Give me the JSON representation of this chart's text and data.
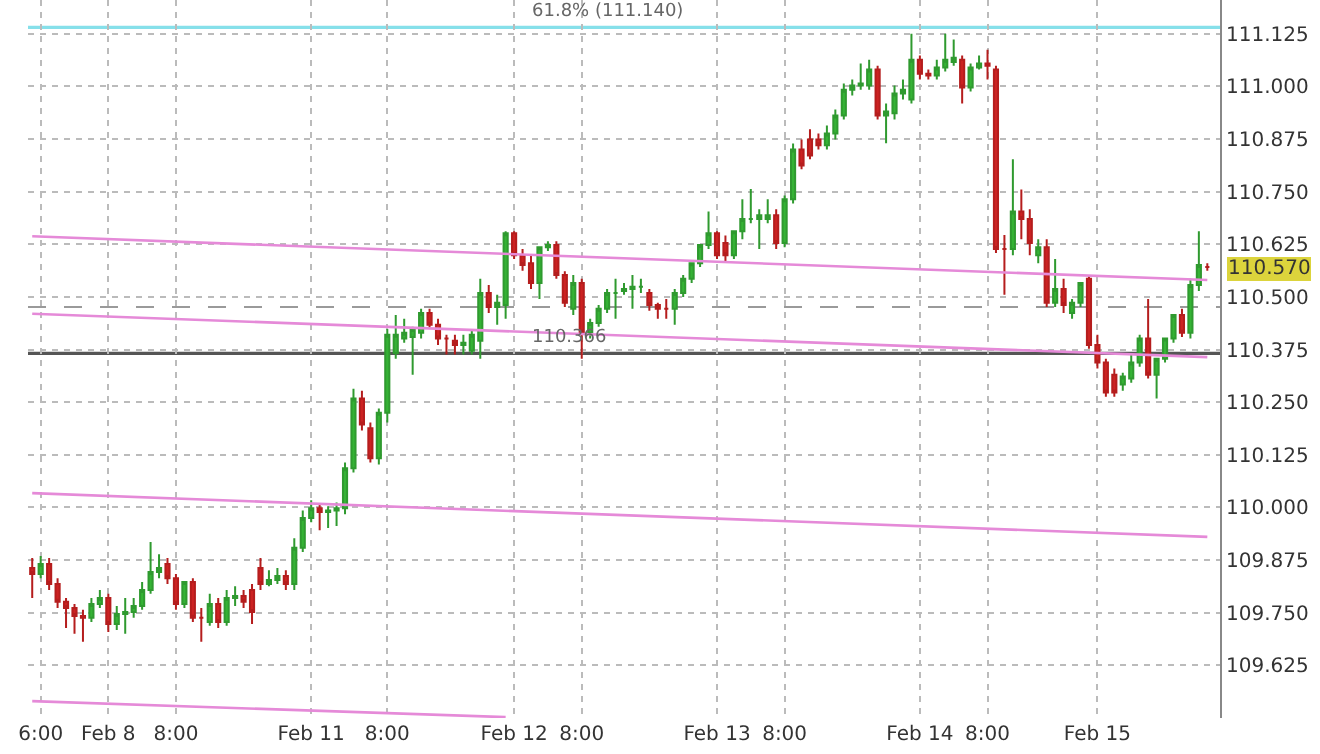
{
  "chart_data": {
    "type": "candlestick",
    "categories": [
      null,
      "6:00",
      null,
      null,
      null,
      null,
      null,
      null,
      null,
      "Feb 8",
      null,
      null,
      null,
      null,
      null,
      null,
      null,
      "8:00",
      null,
      null,
      null,
      null,
      null,
      null,
      null,
      null,
      null,
      null,
      null,
      null,
      null,
      null,
      null,
      "Feb 11",
      null,
      null,
      null,
      null,
      null,
      null,
      null,
      null,
      "8:00",
      null,
      null,
      null,
      null,
      null,
      null,
      null,
      null,
      null,
      null,
      null,
      null,
      null,
      null,
      "Feb 12",
      null,
      null,
      null,
      null,
      null,
      null,
      null,
      "8:00",
      null,
      null,
      null,
      null,
      null,
      null,
      null,
      null,
      null,
      null,
      null,
      null,
      null,
      null,
      null,
      "Feb 13",
      null,
      null,
      null,
      null,
      null,
      null,
      null,
      "8:00",
      null,
      null,
      null,
      null,
      null,
      null,
      null,
      null,
      null,
      null,
      null,
      null,
      null,
      null,
      null,
      "Feb 14",
      null,
      null,
      null,
      null,
      null,
      null,
      null,
      "8:00",
      null,
      null,
      null,
      null,
      null,
      null,
      null,
      null,
      null,
      null,
      null,
      null,
      "Feb 15",
      null,
      null,
      null,
      null,
      null,
      null,
      null,
      null,
      null,
      null,
      null,
      null,
      null
    ],
    "ohlc": [
      [
        109.856,
        109.88,
        109.785,
        109.842
      ],
      [
        109.842,
        109.885,
        109.832,
        109.866
      ],
      [
        109.866,
        109.88,
        109.804,
        109.818
      ],
      [
        109.818,
        109.832,
        109.761,
        109.776
      ],
      [
        109.776,
        109.785,
        109.714,
        109.761
      ],
      [
        109.761,
        109.771,
        109.7,
        109.742
      ],
      [
        109.742,
        109.757,
        109.681,
        109.738
      ],
      [
        109.738,
        109.785,
        109.728,
        109.771
      ],
      [
        109.771,
        109.804,
        109.761,
        109.785
      ],
      [
        109.785,
        109.795,
        109.704,
        109.723
      ],
      [
        109.723,
        109.766,
        109.709,
        109.747
      ],
      [
        109.747,
        109.785,
        109.7,
        109.752
      ],
      [
        109.752,
        109.785,
        109.738,
        109.766
      ],
      [
        109.766,
        109.823,
        109.757,
        109.804
      ],
      [
        109.804,
        109.918,
        109.795,
        109.847
      ],
      [
        109.847,
        109.889,
        109.832,
        109.856
      ],
      [
        109.866,
        109.88,
        109.818,
        109.832
      ],
      [
        109.832,
        109.842,
        109.757,
        109.771
      ],
      [
        109.771,
        109.823,
        109.761,
        109.823
      ],
      [
        109.823,
        109.832,
        109.728,
        109.738
      ],
      [
        109.738,
        109.761,
        109.681,
        109.738
      ],
      [
        109.728,
        109.795,
        109.719,
        109.771
      ],
      [
        109.771,
        109.785,
        109.714,
        109.728
      ],
      [
        109.728,
        109.804,
        109.719,
        109.785
      ],
      [
        109.785,
        109.813,
        109.766,
        109.79
      ],
      [
        109.79,
        109.804,
        109.761,
        109.776
      ],
      [
        109.804,
        109.818,
        109.723,
        109.752
      ],
      [
        109.856,
        109.88,
        109.804,
        109.818
      ],
      [
        109.818,
        109.851,
        109.813,
        109.828
      ],
      [
        109.828,
        109.856,
        109.818,
        109.837
      ],
      [
        109.837,
        109.851,
        109.804,
        109.818
      ],
      [
        109.818,
        109.927,
        109.804,
        109.904
      ],
      [
        109.904,
        109.993,
        109.894,
        109.975
      ],
      [
        109.975,
        110.017,
        109.965,
        109.998
      ],
      [
        109.998,
        110.007,
        109.946,
        109.989
      ],
      [
        109.989,
        110.003,
        109.951,
        109.993
      ],
      [
        109.993,
        110.012,
        109.956,
        109.998
      ],
      [
        109.998,
        110.107,
        109.984,
        110.093
      ],
      [
        110.093,
        110.282,
        110.083,
        110.259
      ],
      [
        110.259,
        110.277,
        110.183,
        110.197
      ],
      [
        110.188,
        110.202,
        110.107,
        110.117
      ],
      [
        110.117,
        110.235,
        110.102,
        110.225
      ],
      [
        110.225,
        110.424,
        110.202,
        110.41
      ],
      [
        110.367,
        110.457,
        110.353,
        110.41
      ],
      [
        110.401,
        110.448,
        110.391,
        110.415
      ],
      [
        110.405,
        110.429,
        110.315,
        110.424
      ],
      [
        110.415,
        110.472,
        110.401,
        110.462
      ],
      [
        110.462,
        110.472,
        110.424,
        110.434
      ],
      [
        110.434,
        110.448,
        110.386,
        110.401
      ],
      [
        110.401,
        110.41,
        110.363,
        110.401
      ],
      [
        110.396,
        110.41,
        110.363,
        110.386
      ],
      [
        110.386,
        110.41,
        110.363,
        110.391
      ],
      [
        110.372,
        110.424,
        110.363,
        110.41
      ],
      [
        110.396,
        110.543,
        110.353,
        110.509
      ],
      [
        110.509,
        110.528,
        110.462,
        110.476
      ],
      [
        110.476,
        110.505,
        110.434,
        110.486
      ],
      [
        110.481,
        110.656,
        110.448,
        110.651
      ],
      [
        110.651,
        110.656,
        110.59,
        110.599
      ],
      [
        110.599,
        110.614,
        110.562,
        110.576
      ],
      [
        110.58,
        110.599,
        110.519,
        110.533
      ],
      [
        110.533,
        110.618,
        110.495,
        110.618
      ],
      [
        110.618,
        110.632,
        110.609,
        110.623
      ],
      [
        110.623,
        110.632,
        110.543,
        110.552
      ],
      [
        110.552,
        110.561,
        110.476,
        110.486
      ],
      [
        110.472,
        110.552,
        110.457,
        110.533
      ],
      [
        110.533,
        110.543,
        110.353,
        110.415
      ],
      [
        110.415,
        110.448,
        110.401,
        110.438
      ],
      [
        110.438,
        110.481,
        110.429,
        110.472
      ],
      [
        110.472,
        110.519,
        110.462,
        110.509
      ],
      [
        110.509,
        110.543,
        110.448,
        110.509
      ],
      [
        110.514,
        110.533,
        110.505,
        110.519
      ],
      [
        110.519,
        110.552,
        110.472,
        110.524
      ],
      [
        110.524,
        110.543,
        110.509,
        110.524
      ],
      [
        110.509,
        110.519,
        110.467,
        110.481
      ],
      [
        110.481,
        110.486,
        110.448,
        110.472
      ],
      [
        110.472,
        110.495,
        110.448,
        110.472
      ],
      [
        110.472,
        110.519,
        110.434,
        110.509
      ],
      [
        110.509,
        110.552,
        110.5,
        110.543
      ],
      [
        110.543,
        110.58,
        110.533,
        110.58
      ],
      [
        110.58,
        110.623,
        110.571,
        110.623
      ],
      [
        110.623,
        110.703,
        110.614,
        110.651
      ],
      [
        110.651,
        110.656,
        110.59,
        110.599
      ],
      [
        110.628,
        110.646,
        110.585,
        110.599
      ],
      [
        110.599,
        110.656,
        110.59,
        110.656
      ],
      [
        110.656,
        110.732,
        110.637,
        110.685
      ],
      [
        110.685,
        110.756,
        110.675,
        110.685
      ],
      [
        110.685,
        110.708,
        110.614,
        110.694
      ],
      [
        110.685,
        110.732,
        110.675,
        110.694
      ],
      [
        110.694,
        110.708,
        110.614,
        110.628
      ],
      [
        110.628,
        110.741,
        110.618,
        110.732
      ],
      [
        110.732,
        110.864,
        110.722,
        110.85
      ],
      [
        110.85,
        110.874,
        110.803,
        110.812
      ],
      [
        110.874,
        110.898,
        110.827,
        110.836
      ],
      [
        110.874,
        110.888,
        110.85,
        110.86
      ],
      [
        110.86,
        110.907,
        110.85,
        110.888
      ],
      [
        110.888,
        110.945,
        110.874,
        110.931
      ],
      [
        110.931,
        111.007,
        110.921,
        110.992
      ],
      [
        110.992,
        111.016,
        110.978,
        111.002
      ],
      [
        111.002,
        111.054,
        110.992,
        111.007
      ],
      [
        111.002,
        111.063,
        110.992,
        111.04
      ],
      [
        111.04,
        111.049,
        110.921,
        110.931
      ],
      [
        110.931,
        110.959,
        110.865,
        110.94
      ],
      [
        110.936,
        111.002,
        110.921,
        110.983
      ],
      [
        110.983,
        111.016,
        110.969,
        110.992
      ],
      [
        110.969,
        111.125,
        110.959,
        111.063
      ],
      [
        111.063,
        111.073,
        111.016,
        111.03
      ],
      [
        111.03,
        111.04,
        111.016,
        111.026
      ],
      [
        111.026,
        111.063,
        111.016,
        111.045
      ],
      [
        111.045,
        111.125,
        111.035,
        111.063
      ],
      [
        111.058,
        111.111,
        111.049,
        111.068
      ],
      [
        111.063,
        111.073,
        110.959,
        110.997
      ],
      [
        110.997,
        111.054,
        110.988,
        111.045
      ],
      [
        111.045,
        111.073,
        111.04,
        111.054
      ],
      [
        111.054,
        111.087,
        111.016,
        111.049
      ],
      [
        111.04,
        111.049,
        110.604,
        110.614
      ],
      [
        110.614,
        110.647,
        110.505,
        110.614
      ],
      [
        110.614,
        110.827,
        110.599,
        110.703
      ],
      [
        110.703,
        110.755,
        110.637,
        110.685
      ],
      [
        110.685,
        110.708,
        110.599,
        110.628
      ],
      [
        110.599,
        110.637,
        110.58,
        110.618
      ],
      [
        110.618,
        110.637,
        110.476,
        110.486
      ],
      [
        110.486,
        110.59,
        110.476,
        110.519
      ],
      [
        110.519,
        110.543,
        110.462,
        110.481
      ],
      [
        110.462,
        110.495,
        110.448,
        110.486
      ],
      [
        110.486,
        110.533,
        110.476,
        110.533
      ],
      [
        110.543,
        110.552,
        110.377,
        110.386
      ],
      [
        110.386,
        110.41,
        110.33,
        110.344
      ],
      [
        110.344,
        110.353,
        110.263,
        110.273
      ],
      [
        110.315,
        110.33,
        110.263,
        110.273
      ],
      [
        110.292,
        110.32,
        110.277,
        110.311
      ],
      [
        110.306,
        110.363,
        110.296,
        110.344
      ],
      [
        110.344,
        110.41,
        110.334,
        110.401
      ],
      [
        110.401,
        110.495,
        110.306,
        110.315
      ],
      [
        110.315,
        110.353,
        110.259,
        110.353
      ],
      [
        110.353,
        110.401,
        110.344,
        110.401
      ],
      [
        110.401,
        110.457,
        110.391,
        110.457
      ],
      [
        110.457,
        110.472,
        110.405,
        110.415
      ],
      [
        110.415,
        110.543,
        110.401,
        110.528
      ],
      [
        110.528,
        110.656,
        110.514,
        110.576
      ],
      [
        110.571,
        110.58,
        110.562,
        110.571
      ]
    ],
    "series": [
      {
        "type": "line",
        "color": "#e58ad8",
        "values": [
          110.644,
          null,
          null,
          null,
          null,
          null,
          null,
          null,
          null,
          null,
          null,
          null,
          null,
          null,
          null,
          null,
          null,
          null,
          null,
          null,
          null,
          null,
          null,
          null,
          null,
          null,
          null,
          null,
          null,
          null,
          null,
          null,
          null,
          null,
          null,
          null,
          null,
          null,
          null,
          null,
          null,
          null,
          null,
          null,
          null,
          null,
          null,
          null,
          null,
          null,
          null,
          null,
          null,
          null,
          null,
          null,
          null,
          null,
          null,
          null,
          null,
          null,
          null,
          null,
          null,
          null,
          null,
          null,
          null,
          null,
          null,
          null,
          null,
          null,
          null,
          null,
          null,
          null,
          null,
          null,
          null,
          null,
          null,
          null,
          null,
          null,
          null,
          null,
          null,
          null,
          null,
          null,
          null,
          null,
          null,
          null,
          null,
          null,
          null,
          null,
          null,
          null,
          null,
          null,
          null,
          null,
          null,
          null,
          null,
          null,
          null,
          null,
          null,
          null,
          null,
          null,
          null,
          null,
          null,
          null,
          null,
          null,
          null,
          null,
          null,
          null,
          null,
          null,
          null,
          null,
          null,
          null,
          null,
          null,
          null,
          null,
          null,
          null,
          null,
          110.54
        ]
      },
      {
        "type": "line",
        "color": "#e58ad8",
        "values": [
          110.46,
          null,
          null,
          null,
          null,
          null,
          null,
          null,
          null,
          null,
          null,
          null,
          null,
          null,
          null,
          null,
          null,
          null,
          null,
          null,
          null,
          null,
          null,
          null,
          null,
          null,
          null,
          null,
          null,
          null,
          null,
          null,
          null,
          null,
          null,
          null,
          null,
          null,
          null,
          null,
          null,
          null,
          null,
          null,
          null,
          null,
          null,
          null,
          null,
          null,
          null,
          null,
          null,
          null,
          null,
          null,
          null,
          null,
          null,
          null,
          null,
          null,
          null,
          null,
          null,
          null,
          null,
          null,
          null,
          null,
          null,
          null,
          null,
          null,
          null,
          null,
          null,
          null,
          null,
          null,
          null,
          null,
          null,
          null,
          null,
          null,
          null,
          null,
          null,
          null,
          null,
          null,
          null,
          null,
          null,
          null,
          null,
          null,
          null,
          null,
          null,
          null,
          null,
          null,
          null,
          null,
          null,
          null,
          null,
          null,
          null,
          null,
          null,
          null,
          null,
          null,
          null,
          null,
          null,
          null,
          null,
          null,
          null,
          null,
          null,
          null,
          null,
          null,
          null,
          null,
          null,
          null,
          null,
          null,
          null,
          null,
          null,
          null,
          null,
          110.357
        ]
      },
      {
        "type": "line",
        "color": "#e58ad8",
        "values": [
          110.034,
          null,
          null,
          null,
          null,
          null,
          null,
          null,
          null,
          null,
          null,
          null,
          null,
          null,
          null,
          null,
          null,
          null,
          null,
          null,
          null,
          null,
          null,
          null,
          null,
          null,
          null,
          null,
          null,
          null,
          null,
          null,
          null,
          null,
          null,
          null,
          null,
          null,
          null,
          null,
          null,
          null,
          null,
          null,
          null,
          null,
          null,
          null,
          null,
          null,
          null,
          null,
          null,
          null,
          null,
          null,
          null,
          null,
          null,
          null,
          null,
          null,
          null,
          null,
          null,
          null,
          null,
          null,
          null,
          null,
          null,
          null,
          null,
          null,
          null,
          null,
          null,
          null,
          null,
          null,
          null,
          null,
          null,
          null,
          null,
          null,
          null,
          null,
          null,
          null,
          null,
          null,
          null,
          null,
          null,
          null,
          null,
          null,
          null,
          null,
          null,
          null,
          null,
          null,
          null,
          null,
          null,
          null,
          null,
          null,
          null,
          null,
          null,
          null,
          null,
          null,
          null,
          null,
          null,
          null,
          null,
          null,
          null,
          null,
          null,
          null,
          null,
          null,
          null,
          null,
          null,
          null,
          null,
          null,
          null,
          null,
          null,
          null,
          null,
          109.93
        ]
      },
      {
        "type": "line",
        "color": "#e58ad8",
        "values": [
          109.54,
          null,
          null,
          null,
          null,
          null,
          null,
          null,
          null,
          null,
          null,
          null,
          null,
          null,
          null,
          null,
          null,
          null,
          null,
          null,
          null,
          null,
          null,
          null,
          null,
          null,
          null,
          null,
          null,
          null,
          null,
          null,
          null,
          null,
          null,
          null,
          null,
          null,
          null,
          null,
          null,
          null,
          null,
          null,
          null,
          null,
          null,
          null,
          null,
          null,
          null,
          null,
          null,
          null,
          null,
          null,
          109.502,
          null,
          null,
          null,
          null,
          null,
          null,
          null,
          null,
          null,
          null,
          null,
          null,
          null,
          null,
          null,
          null,
          null,
          null,
          null,
          null,
          null,
          null,
          null,
          null,
          null,
          null,
          null,
          null,
          null,
          null,
          null,
          null,
          null,
          null,
          null,
          null,
          null,
          null,
          null,
          null,
          null,
          null,
          null,
          null,
          null,
          null,
          null,
          null,
          null,
          null,
          null,
          null,
          null,
          null,
          null,
          null,
          null,
          null,
          null,
          null,
          null,
          null,
          null,
          null,
          null,
          null,
          null,
          null,
          null,
          null,
          null,
          null,
          null,
          null,
          null,
          null,
          null,
          null,
          null,
          null,
          null,
          null,
          null
        ]
      }
    ],
    "ylim": [
      109.5,
      111.205
    ],
    "yticks": [
      {
        "value": 109.625,
        "label": "109.625"
      },
      {
        "value": 109.75,
        "label": "109.750"
      },
      {
        "value": 109.875,
        "label": "109.875"
      },
      {
        "value": 110,
        "label": "110.000"
      },
      {
        "value": 110.125,
        "label": "110.125"
      },
      {
        "value": 110.25,
        "label": "110.250"
      },
      {
        "value": 110.375,
        "label": "110.375"
      },
      {
        "value": 110.5,
        "label": "110.500"
      },
      {
        "value": 110.625,
        "label": "110.625"
      },
      {
        "value": 110.75,
        "label": "110.750"
      },
      {
        "value": 110.875,
        "label": "110.875"
      },
      {
        "value": 111,
        "label": "111.000"
      },
      {
        "value": 111.125,
        "label": "111.125"
      }
    ],
    "ref_lines": [
      {
        "axis": "y",
        "value": 111.14,
        "label": "61.8% (111.140)",
        "color": "#86e0ea"
      },
      {
        "axis": "y",
        "value": 110.366,
        "label": "110.366",
        "color": "#555555"
      },
      {
        "axis": "y",
        "value": 110.476,
        "label": null,
        "color": "#9a9a9a",
        "line_style": "dashed"
      }
    ],
    "annotations": [
      "110.570"
    ],
    "grid": true
  }
}
